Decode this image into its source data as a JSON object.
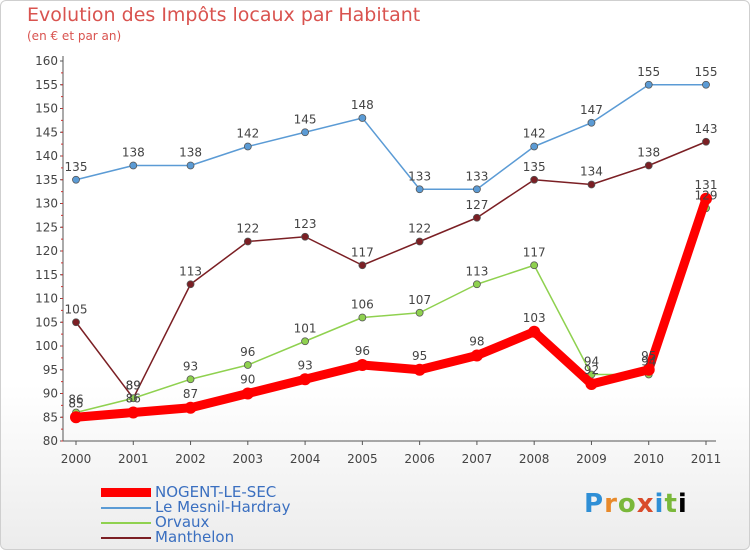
{
  "chart_data": {
    "type": "line",
    "title": "Evolution des Impôts locaux par Habitant",
    "subtitle": "(en € et par an)",
    "x": [
      "2000",
      "2001",
      "2002",
      "2003",
      "2004",
      "2005",
      "2006",
      "2007",
      "2008",
      "2009",
      "2010",
      "2011"
    ],
    "ylim": [
      80,
      160
    ],
    "yticks": [
      "80",
      "85",
      "90",
      "95",
      "100",
      "105",
      "110",
      "115",
      "120",
      "125",
      "130",
      "135",
      "140",
      "145",
      "150",
      "155",
      "160"
    ],
    "grid": false,
    "series": [
      {
        "name": "NOGENT-LE-SEC",
        "color": "#ff0000",
        "values": [
          85,
          86,
          87,
          90,
          93,
          96,
          95,
          98,
          103,
          92,
          95,
          131
        ],
        "labels": [
          "85",
          "86",
          "87",
          "90",
          "93",
          "96",
          "95",
          "98",
          "103",
          "92",
          "95",
          "131"
        ]
      },
      {
        "name": "Le Mesnil-Hardray",
        "color": "#5b9bd5",
        "values": [
          135,
          138,
          138,
          142,
          145,
          148,
          133,
          133,
          142,
          147,
          155,
          155
        ],
        "labels": [
          "135",
          "138",
          "138",
          "142",
          "145",
          "148",
          "133",
          "133",
          "142",
          "147",
          "155",
          "155"
        ]
      },
      {
        "name": "Orvaux",
        "color": "#8fd14f",
        "values": [
          86,
          89,
          93,
          96,
          101,
          106,
          107,
          113,
          117,
          94,
          94,
          129
        ],
        "labels": [
          "86",
          "89",
          "93",
          "96",
          "101",
          "106",
          "107",
          "113",
          "117",
          "94",
          "94",
          "129"
        ]
      },
      {
        "name": "Manthelon",
        "color": "#7b1f24",
        "values": [
          105,
          89,
          113,
          122,
          123,
          117,
          122,
          127,
          135,
          134,
          138,
          143
        ],
        "labels": [
          "105",
          "89",
          "113",
          "122",
          "123",
          "117",
          "122",
          "127",
          "135",
          "134",
          "138",
          "143"
        ]
      }
    ]
  },
  "brand": {
    "letters": [
      "P",
      "r",
      "o",
      "x",
      "i",
      "t",
      "i"
    ]
  }
}
